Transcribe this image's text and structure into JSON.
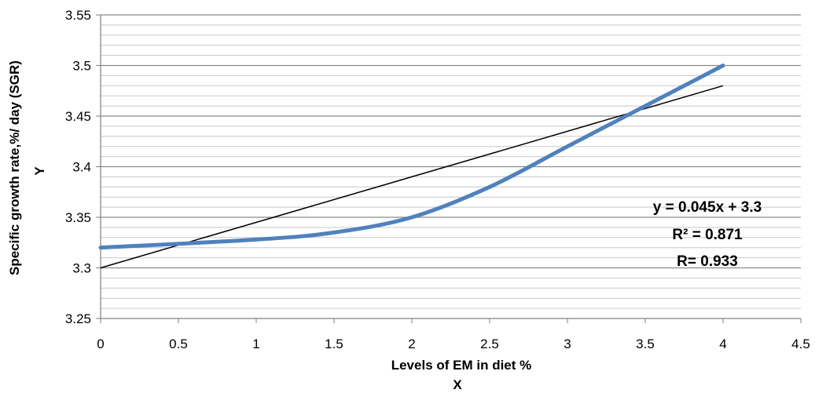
{
  "chart_data": {
    "type": "line",
    "title": "",
    "xlabel": "Levels of EM in diet  %",
    "xlabel_sub": "X",
    "ylabel": "Specific growth rate,%/ day (SGR)",
    "ylabel_sub": "Y",
    "xlim": [
      0,
      4.5
    ],
    "ylim": [
      3.25,
      3.55
    ],
    "x_ticks": [
      "0",
      "0.5",
      "1",
      "1.5",
      "2",
      "2.5",
      "3",
      "3.5",
      "4",
      "4.5"
    ],
    "y_ticks": [
      "3.25",
      "3.3",
      "3.35",
      "3.4",
      "3.45",
      "3.5",
      "3.55"
    ],
    "grid": "horizontal",
    "minor_grid_step": 0.01,
    "series": [
      {
        "color": "#4f81bd",
        "x": [
          0,
          1,
          1.5,
          2,
          2.5,
          3,
          3.5,
          4
        ],
        "y": [
          3.32,
          3.328,
          3.335,
          3.35,
          3.38,
          3.42,
          3.46,
          3.5
        ]
      }
    ],
    "trendline": {
      "color": "#000000",
      "slope": 0.045,
      "intercept": 3.3,
      "x_range": [
        0,
        4
      ]
    },
    "annotations": [
      "y = 0.045x + 3.3",
      "R²  = 0.871",
      "R= 0.933"
    ]
  }
}
